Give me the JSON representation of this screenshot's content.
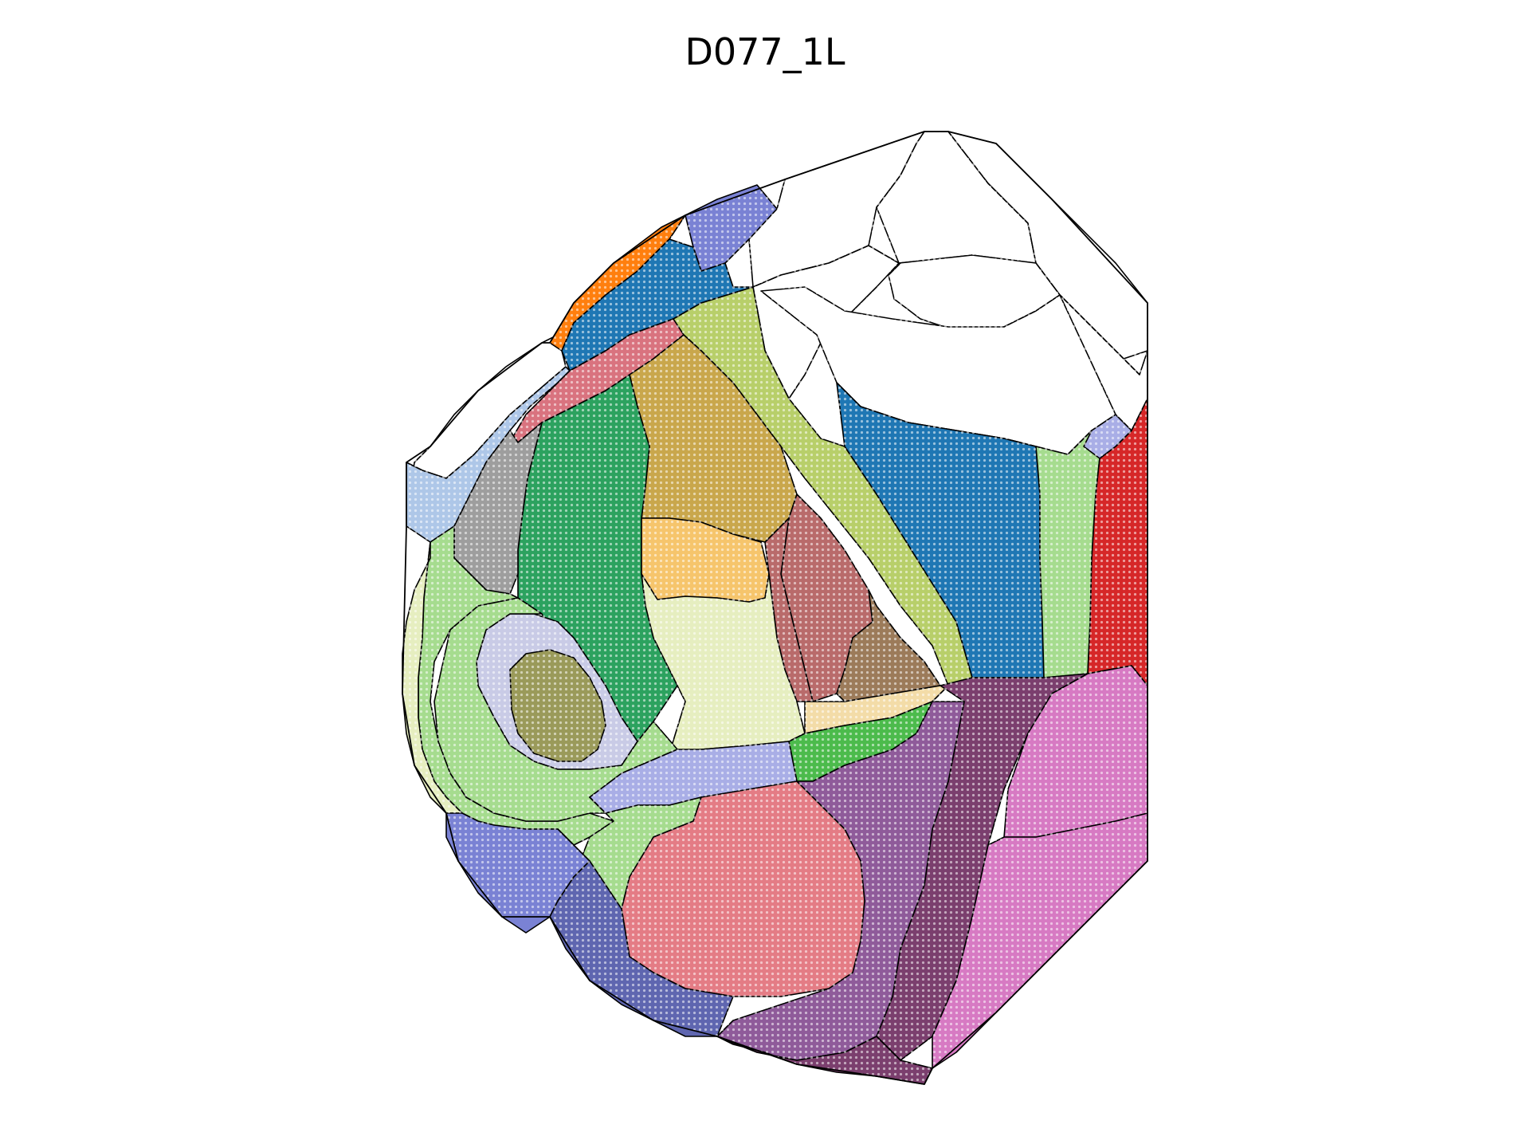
{
  "title": "D077_1L",
  "colors": {
    "orange": "#ff7f0e",
    "blue": "#1f77b4",
    "light_blue": "#aec7e8",
    "slate_blue": "#7a82d4",
    "pink_red": "#d9737f",
    "olive_light": "#b8cf6a",
    "gold": "#c9a74c",
    "green": "#2ca25f",
    "gray": "#9e9e9e",
    "peach": "#f6c56c",
    "dark_red": "#b96b6b",
    "brown": "#9c7b5a",
    "pale_yellow": "#e6eec0",
    "lavender": "#c9cbe6",
    "olive_dark": "#9a9a5a",
    "light_green": "#a6dc8f",
    "red": "#d62728",
    "pale_lavender": "#a9aee6",
    "magenta_pink": "#d77ac3",
    "plum": "#7b3f6e",
    "salmon": "#e47c85",
    "purple": "#8f5b9a",
    "navy_blue": "#5f66b0",
    "wheat": "#f3dca8",
    "bright_green": "#4cbb4c",
    "outline": "#000000"
  }
}
